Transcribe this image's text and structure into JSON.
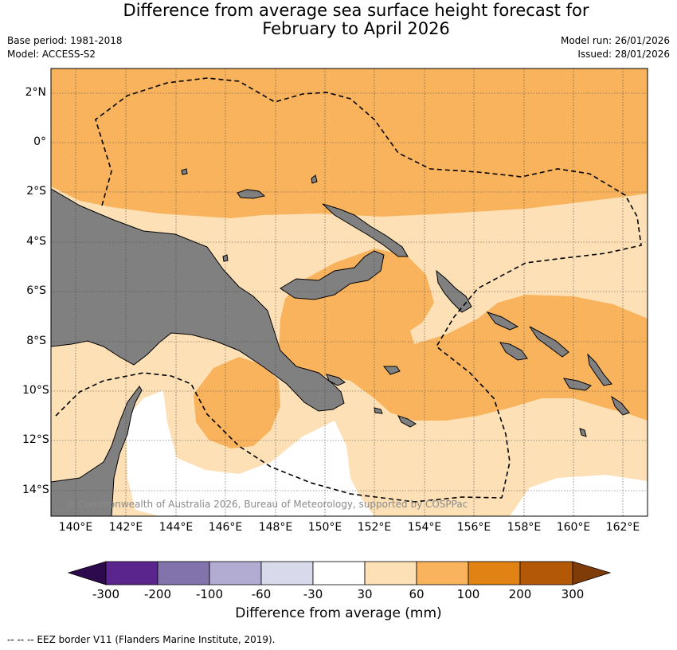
{
  "header": {
    "title_line1": "Difference from average sea surface height forecast for",
    "title_line2": "February to April 2026",
    "base_period": "Base period: 1981-2018",
    "model": "Model: ACCESS-S2",
    "model_run": "Model run: 26/01/2026",
    "issued": "Issued: 28/01/2026"
  },
  "map": {
    "lat_labels": [
      "2°N",
      "0°",
      "2°S",
      "4°S",
      "6°S",
      "8°S",
      "10°S",
      "12°S",
      "14°S"
    ],
    "lon_labels": [
      "140°E",
      "142°E",
      "144°E",
      "146°E",
      "148°E",
      "150°E",
      "152°E",
      "154°E",
      "156°E",
      "158°E",
      "160°E",
      "162°E"
    ],
    "credit": "© Commonwealth of Australia 2026, Bureau of Meteorology, supported by COSPPac",
    "colors": {
      "band_30_60": "#fde0b5",
      "band_60_100": "#f8b35c",
      "below_30": "#ffffff",
      "land": "#808080",
      "eez": "#000000"
    }
  },
  "legend": {
    "labels": [
      "-300",
      "-200",
      "-100",
      "-60",
      "-30",
      "30",
      "60",
      "100",
      "200",
      "300"
    ],
    "colors": [
      "#2d0a4e",
      "#5a268d",
      "#8373ad",
      "#b2acd2",
      "#d8d9ea",
      "#ffffff",
      "#fde0b5",
      "#f8b35c",
      "#e08214",
      "#b35806",
      "#7f3b08"
    ],
    "title": "Difference from average (mm)"
  },
  "footnote": "--  --  -- EEZ border V11 (Flanders Marine Institute, 2019)."
}
